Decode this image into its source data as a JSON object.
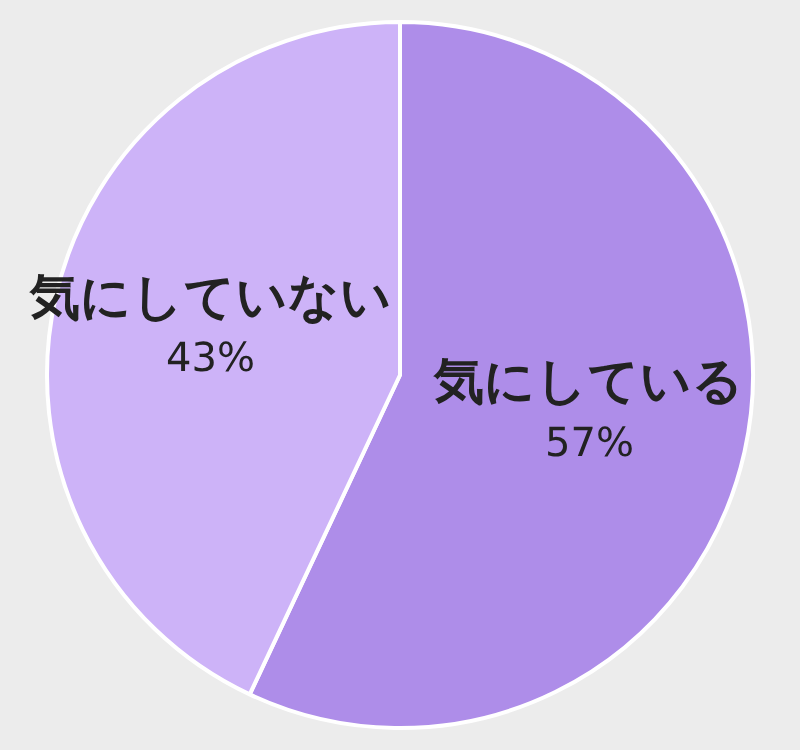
{
  "chart_data": {
    "type": "pie",
    "categories": [
      "気にしている",
      "気にしていない"
    ],
    "values": [
      57,
      43
    ],
    "colors": [
      "#ae8de9",
      "#cdb3f8"
    ],
    "value_labels": [
      "57%",
      "43%"
    ]
  }
}
